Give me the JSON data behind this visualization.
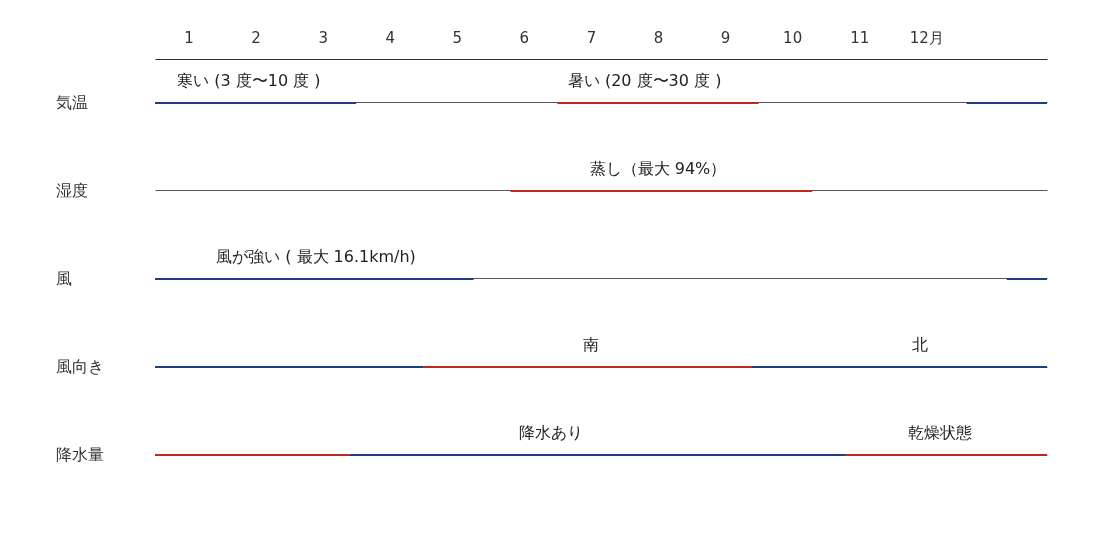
{
  "chart_data": {
    "type": "bar",
    "orientation": "horizontal",
    "categories": [
      "気温",
      "湿度",
      "風",
      "風向き",
      "降水量"
    ],
    "xlim": [
      0.5,
      13.8
    ],
    "xticks": [
      1,
      2,
      3,
      4,
      5,
      6,
      7,
      8,
      9,
      10,
      11,
      {
        "value": 12,
        "label": "12月"
      }
    ],
    "grid": "y",
    "series": [
      {
        "color": "#1f3f7f",
        "values": [
          3.0,
          null,
          4.75,
          4.0,
          7.4
        ],
        "base": [
          0.5,
          null,
          0.5,
          0.5,
          3.4
        ]
      },
      {
        "color": "#c0281c",
        "values": [
          3.0,
          4.5,
          null,
          4.9,
          2.9
        ],
        "base": [
          6.5,
          5.8,
          null,
          4.5,
          0.5
        ]
      },
      {
        "color": "#1f3f7f",
        "values": [
          1.2,
          null,
          0.6,
          4.4,
          null
        ],
        "base": [
          12.6,
          null,
          13.2,
          9.4,
          null
        ]
      },
      {
        "color": "#c0281c",
        "values": [
          null,
          null,
          null,
          null,
          3.0
        ],
        "base": [
          null,
          null,
          null,
          null,
          10.8
        ]
      }
    ],
    "annotations": [
      {
        "text": "寒い (3 度〜10 度 )",
        "x": 1.9,
        "y": "気温"
      },
      {
        "text": "暑い (20 度〜30 度 )",
        "x": 7.8,
        "y": "気温"
      },
      {
        "text": "蒸し（最大 94%）",
        "x": 8.0,
        "y": "湿度"
      },
      {
        "text": "風が強い ( 最大 16.1km/h)",
        "x": 2.9,
        "y": "風"
      },
      {
        "text": "南",
        "x": 7.0,
        "y": "風向き"
      },
      {
        "text": "北",
        "x": 11.9,
        "y": "風向き"
      },
      {
        "text": "降水あり",
        "x": 6.4,
        "y": "降水量"
      },
      {
        "text": "乾燥状態",
        "x": 12.2,
        "y": "降水量"
      }
    ]
  }
}
